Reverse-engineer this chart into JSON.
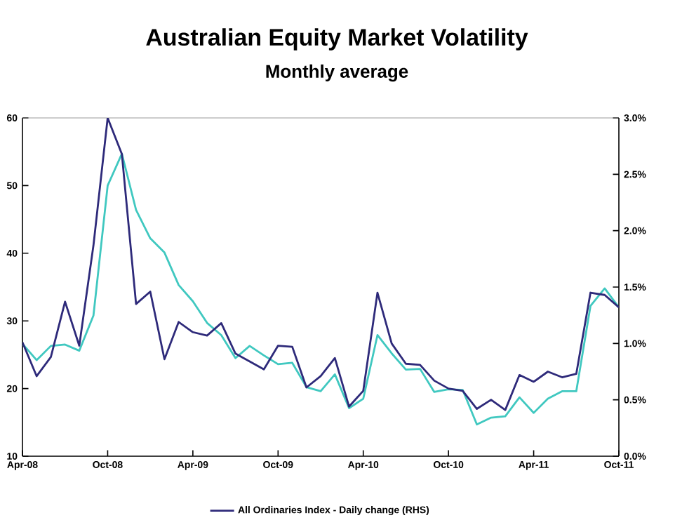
{
  "chart_data": {
    "type": "line",
    "title": "Australian Equity Market Volatility",
    "subtitle": "Monthly average",
    "x": [
      "2008-04",
      "2008-05",
      "2008-06",
      "2008-07",
      "2008-08",
      "2008-09",
      "2008-10",
      "2008-11",
      "2008-12",
      "2009-01",
      "2009-02",
      "2009-03",
      "2009-04",
      "2009-05",
      "2009-06",
      "2009-07",
      "2009-08",
      "2009-09",
      "2009-10",
      "2009-11",
      "2009-12",
      "2010-01",
      "2010-02",
      "2010-03",
      "2010-04",
      "2010-05",
      "2010-06",
      "2010-07",
      "2010-08",
      "2010-09",
      "2010-10",
      "2010-11",
      "2010-12",
      "2011-01",
      "2011-02",
      "2011-03",
      "2011-04",
      "2011-05",
      "2011-06",
      "2011-07",
      "2011-08",
      "2011-09",
      "2011-10"
    ],
    "series": [
      {
        "color": "#40c8c0",
        "values": [
          26.6,
          24.2,
          26.3,
          26.5,
          25.6,
          30.8,
          50.0,
          54.7,
          46.4,
          42.2,
          40.1,
          35.3,
          32.9,
          29.7,
          27.9,
          24.5,
          26.3,
          24.9,
          23.6,
          23.8,
          20.2,
          19.6,
          22.1,
          17.1,
          18.5,
          27.9,
          25.2,
          22.8,
          22.9,
          19.5,
          19.9,
          19.8,
          14.7,
          15.7,
          15.9,
          18.7,
          16.4,
          18.5,
          19.6,
          19.6,
          32.2,
          34.8,
          32.0
        ]
      },
      {
        "name": "All Ordinaries Index - Daily change (RHS)",
        "color": "#2e2a7a",
        "axis": "y2",
        "values": [
          1.01,
          0.71,
          0.88,
          1.37,
          0.98,
          1.87,
          3.0,
          2.68,
          1.35,
          1.46,
          0.86,
          1.19,
          1.1,
          1.07,
          1.18,
          0.91,
          0.84,
          0.77,
          0.98,
          0.97,
          0.61,
          0.71,
          0.87,
          0.44,
          0.58,
          1.45,
          1.0,
          0.82,
          0.81,
          0.67,
          0.6,
          0.58,
          0.42,
          0.5,
          0.41,
          0.72,
          0.66,
          0.75,
          0.7,
          0.73,
          1.45,
          1.43,
          1.32
        ]
      }
    ],
    "xlim": [
      "2008-04",
      "2011-10"
    ],
    "xticks": [
      {
        "value": "2008-04",
        "label": "Apr-08"
      },
      {
        "value": "2008-10",
        "label": "Oct-08"
      },
      {
        "value": "2009-04",
        "label": "Apr-09"
      },
      {
        "value": "2009-10",
        "label": "Oct-09"
      },
      {
        "value": "2010-04",
        "label": "Apr-10"
      },
      {
        "value": "2010-10",
        "label": "Oct-10"
      },
      {
        "value": "2011-04",
        "label": "Apr-11"
      },
      {
        "value": "2011-10",
        "label": "Oct-11"
      }
    ],
    "ylim": [
      10,
      60
    ],
    "yticks": [
      10,
      20,
      30,
      40,
      50,
      60
    ],
    "y2lim": [
      0,
      3.0
    ],
    "y2ticks": [
      {
        "value": 0,
        "label": "0.0%"
      },
      {
        "value": 0.5,
        "label": "0.5%"
      },
      {
        "value": 1.0,
        "label": "1.0%"
      },
      {
        "value": 1.5,
        "label": "1.5%"
      },
      {
        "value": 2.0,
        "label": "2.0%"
      },
      {
        "value": 2.5,
        "label": "2.5%"
      },
      {
        "value": 3.0,
        "label": "3.0%"
      }
    ],
    "grid": false,
    "legend": "bottom",
    "marker": "none",
    "line_style": "solid"
  }
}
